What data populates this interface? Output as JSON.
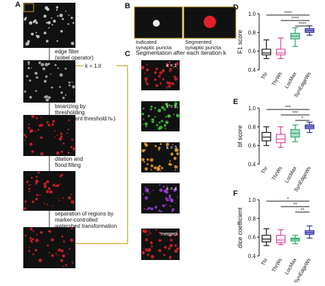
{
  "figure": {
    "panel_a": {
      "label": "A",
      "steps": [
        "edge filter",
        "(sobel operator)",
        "binarizing by",
        "thresholding",
        "(decrement threshold hₖ)",
        "dilation and",
        "flood filling",
        "separation of regions by",
        "marker-controlled",
        "watershed transformation"
      ],
      "loop": "k = 1:it"
    },
    "panel_b": {
      "label": "B",
      "left": [
        "Indicated",
        "synaptic puncta"
      ],
      "right": [
        "Segmented",
        "synaptic puncta"
      ]
    },
    "panel_c": {
      "label": "C",
      "title": "Segmentation after each iteration k",
      "rows": [
        "k = 1",
        "k = 2",
        "k = 3",
        "k = 4",
        "merged"
      ]
    }
  },
  "chart_data": [
    {
      "type": "box",
      "panel_label": "D",
      "ylabel": "F1 score",
      "ylim": [
        0.4,
        1.0
      ],
      "yticks": [
        0.4,
        0.6,
        0.8,
        {
          "value": 1.0,
          "label": "1.0"
        }
      ],
      "categories": [
        "Thr",
        "ThrWs",
        "LocMax",
        "SynEdgeWs"
      ],
      "colors": [
        "#111111",
        "#e0409a",
        "#2ea36b",
        "#2b2a9a"
      ],
      "boxes": [
        {
          "min": 0.52,
          "q1": 0.56,
          "median": 0.58,
          "q3": 0.62,
          "max": 0.72
        },
        {
          "min": 0.52,
          "q1": 0.56,
          "median": 0.58,
          "q3": 0.62,
          "max": 0.74
        },
        {
          "min": 0.65,
          "q1": 0.73,
          "median": 0.76,
          "q3": 0.79,
          "max": 0.85
        },
        {
          "min": 0.77,
          "q1": 0.8,
          "median": 0.82,
          "q3": 0.84,
          "max": 0.87
        }
      ],
      "significance": [
        "****",
        "****",
        "****"
      ]
    },
    {
      "type": "box",
      "panel_label": "E",
      "ylabel": "bf score",
      "ylim": [
        0.4,
        1.0
      ],
      "yticks": [
        0.4,
        0.6,
        0.8,
        {
          "value": 1.0,
          "label": "1.0"
        }
      ],
      "categories": [
        "Thr",
        "ThrWs",
        "LocMax",
        "SynEdgeWs"
      ],
      "colors": [
        "#111111",
        "#e0409a",
        "#2ea36b",
        "#2b2a9a"
      ],
      "boxes": [
        {
          "min": 0.6,
          "q1": 0.65,
          "median": 0.69,
          "q3": 0.74,
          "max": 0.8
        },
        {
          "min": 0.58,
          "q1": 0.63,
          "median": 0.67,
          "q3": 0.72,
          "max": 0.8
        },
        {
          "min": 0.64,
          "q1": 0.69,
          "median": 0.73,
          "q3": 0.77,
          "max": 0.82
        },
        {
          "min": 0.74,
          "q1": 0.78,
          "median": 0.8,
          "q3": 0.82,
          "max": 0.85
        }
      ],
      "significance": [
        "***",
        "***",
        "*"
      ]
    },
    {
      "type": "box",
      "panel_label": "F",
      "ylabel": "dice coefficient",
      "ylim": [
        0.4,
        1.0
      ],
      "yticks": [
        0.4,
        0.6,
        0.8,
        {
          "value": 1.0,
          "label": "1.0"
        }
      ],
      "categories": [
        "Thr",
        "ThrWs",
        "LocMax",
        "SynEdgeWs"
      ],
      "colors": [
        "#111111",
        "#e0409a",
        "#2ea36b",
        "#2b2a9a"
      ],
      "boxes": [
        {
          "min": 0.51,
          "q1": 0.55,
          "median": 0.58,
          "q3": 0.62,
          "max": 0.69
        },
        {
          "min": 0.52,
          "q1": 0.54,
          "median": 0.57,
          "q3": 0.62,
          "max": 0.68
        },
        {
          "min": 0.53,
          "q1": 0.56,
          "median": 0.58,
          "q3": 0.59,
          "max": 0.62
        },
        {
          "min": 0.59,
          "q1": 0.63,
          "median": 0.65,
          "q3": 0.67,
          "max": 0.72
        }
      ],
      "significance": [
        "*",
        "**",
        "**"
      ]
    }
  ]
}
